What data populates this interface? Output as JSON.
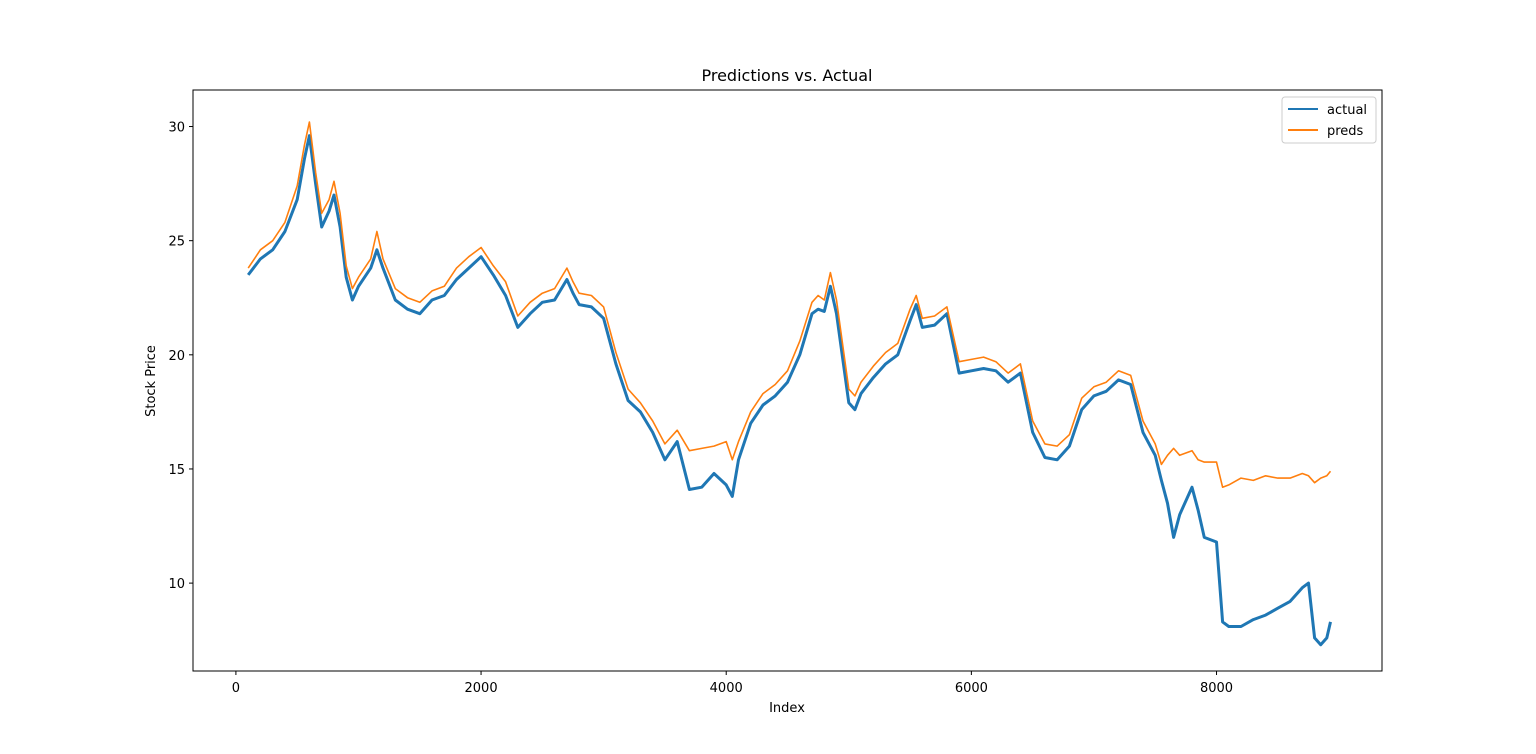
{
  "chart_data": {
    "type": "line",
    "title": "Predictions vs. Actual",
    "xlabel": "Index",
    "ylabel": "Stock Price",
    "xlim": [
      -350,
      9350
    ],
    "ylim": [
      6.15,
      31.6
    ],
    "x_ticks": [
      0,
      2000,
      4000,
      6000,
      8000
    ],
    "y_ticks": [
      10,
      15,
      20,
      25,
      30
    ],
    "grid": false,
    "legend_position": "upper right",
    "series": [
      {
        "name": "actual",
        "color": "#1f77b4",
        "x": [
          100,
          200,
          300,
          400,
          500,
          560,
          600,
          650,
          700,
          760,
          800,
          850,
          900,
          950,
          1000,
          1100,
          1150,
          1200,
          1300,
          1400,
          1500,
          1600,
          1700,
          1800,
          1900,
          2000,
          2100,
          2200,
          2300,
          2400,
          2500,
          2600,
          2700,
          2750,
          2800,
          2900,
          3000,
          3100,
          3200,
          3300,
          3400,
          3500,
          3600,
          3700,
          3800,
          3900,
          4000,
          4050,
          4100,
          4200,
          4300,
          4400,
          4500,
          4600,
          4700,
          4750,
          4800,
          4850,
          4900,
          5000,
          5050,
          5100,
          5200,
          5300,
          5400,
          5500,
          5550,
          5600,
          5700,
          5800,
          5900,
          6000,
          6100,
          6200,
          6300,
          6400,
          6500,
          6600,
          6700,
          6800,
          6900,
          7000,
          7100,
          7200,
          7300,
          7400,
          7500,
          7550,
          7600,
          7650,
          7700,
          7800,
          7850,
          7900,
          8000,
          8050,
          8100,
          8200,
          8300,
          8400,
          8500,
          8600,
          8700,
          8750,
          8800,
          8850,
          8900,
          8930
        ],
        "y": [
          23.5,
          24.2,
          24.6,
          25.4,
          26.8,
          28.6,
          29.6,
          27.5,
          25.6,
          26.3,
          27.0,
          25.6,
          23.4,
          22.4,
          23.0,
          23.8,
          24.6,
          23.8,
          22.4,
          22.0,
          21.8,
          22.4,
          22.6,
          23.3,
          23.8,
          24.3,
          23.5,
          22.6,
          21.2,
          21.8,
          22.3,
          22.4,
          23.3,
          22.7,
          22.2,
          22.1,
          21.6,
          19.6,
          18.0,
          17.5,
          16.6,
          15.4,
          16.2,
          14.1,
          14.2,
          14.8,
          14.3,
          13.8,
          15.4,
          17.0,
          17.8,
          18.2,
          18.8,
          20.0,
          21.8,
          22.0,
          21.9,
          23.0,
          21.8,
          17.9,
          17.6,
          18.3,
          19.0,
          19.6,
          20.0,
          21.5,
          22.2,
          21.2,
          21.3,
          21.8,
          19.2,
          19.3,
          19.4,
          19.3,
          18.8,
          19.2,
          16.6,
          15.5,
          15.4,
          16.0,
          17.6,
          18.2,
          18.4,
          18.9,
          18.7,
          16.6,
          15.6,
          14.5,
          13.5,
          12.0,
          13.0,
          14.2,
          13.2,
          12.0,
          11.8,
          8.3,
          8.1,
          8.1,
          8.4,
          8.6,
          8.9,
          9.2,
          9.8,
          10.0,
          7.6,
          7.3,
          7.6,
          8.3
        ]
      },
      {
        "name": "preds",
        "color": "#ff7f0e",
        "x": [
          100,
          200,
          300,
          400,
          500,
          560,
          600,
          650,
          700,
          760,
          800,
          850,
          900,
          950,
          1000,
          1100,
          1150,
          1200,
          1300,
          1400,
          1500,
          1600,
          1700,
          1800,
          1900,
          2000,
          2100,
          2200,
          2300,
          2400,
          2500,
          2600,
          2700,
          2750,
          2800,
          2900,
          3000,
          3100,
          3200,
          3300,
          3400,
          3500,
          3600,
          3700,
          3800,
          3900,
          4000,
          4050,
          4100,
          4200,
          4300,
          4400,
          4500,
          4600,
          4700,
          4750,
          4800,
          4850,
          4900,
          5000,
          5050,
          5100,
          5200,
          5300,
          5400,
          5500,
          5550,
          5600,
          5700,
          5800,
          5900,
          6000,
          6100,
          6200,
          6300,
          6400,
          6500,
          6600,
          6700,
          6800,
          6900,
          7000,
          7100,
          7200,
          7300,
          7400,
          7500,
          7550,
          7600,
          7650,
          7700,
          7800,
          7850,
          7900,
          8000,
          8050,
          8100,
          8200,
          8300,
          8400,
          8500,
          8600,
          8700,
          8750,
          8800,
          8850,
          8900,
          8930
        ],
        "y": [
          23.8,
          24.6,
          25.0,
          25.8,
          27.4,
          29.2,
          30.2,
          28.0,
          26.2,
          26.8,
          27.6,
          26.2,
          23.9,
          22.9,
          23.4,
          24.2,
          25.4,
          24.2,
          22.9,
          22.5,
          22.3,
          22.8,
          23.0,
          23.8,
          24.3,
          24.7,
          23.9,
          23.2,
          21.7,
          22.3,
          22.7,
          22.9,
          23.8,
          23.2,
          22.7,
          22.6,
          22.1,
          20.1,
          18.5,
          17.9,
          17.1,
          16.1,
          16.7,
          15.8,
          15.9,
          16.0,
          16.2,
          15.4,
          16.2,
          17.5,
          18.3,
          18.7,
          19.3,
          20.6,
          22.3,
          22.6,
          22.4,
          23.6,
          22.4,
          18.5,
          18.2,
          18.8,
          19.5,
          20.1,
          20.5,
          22.0,
          22.6,
          21.6,
          21.7,
          22.1,
          19.7,
          19.8,
          19.9,
          19.7,
          19.2,
          19.6,
          17.1,
          16.1,
          16.0,
          16.5,
          18.1,
          18.6,
          18.8,
          19.3,
          19.1,
          17.1,
          16.1,
          15.2,
          15.6,
          15.9,
          15.6,
          15.8,
          15.4,
          15.3,
          15.3,
          14.2,
          14.3,
          14.6,
          14.5,
          14.7,
          14.6,
          14.6,
          14.8,
          14.7,
          14.4,
          14.6,
          14.7,
          14.9
        ]
      }
    ]
  }
}
